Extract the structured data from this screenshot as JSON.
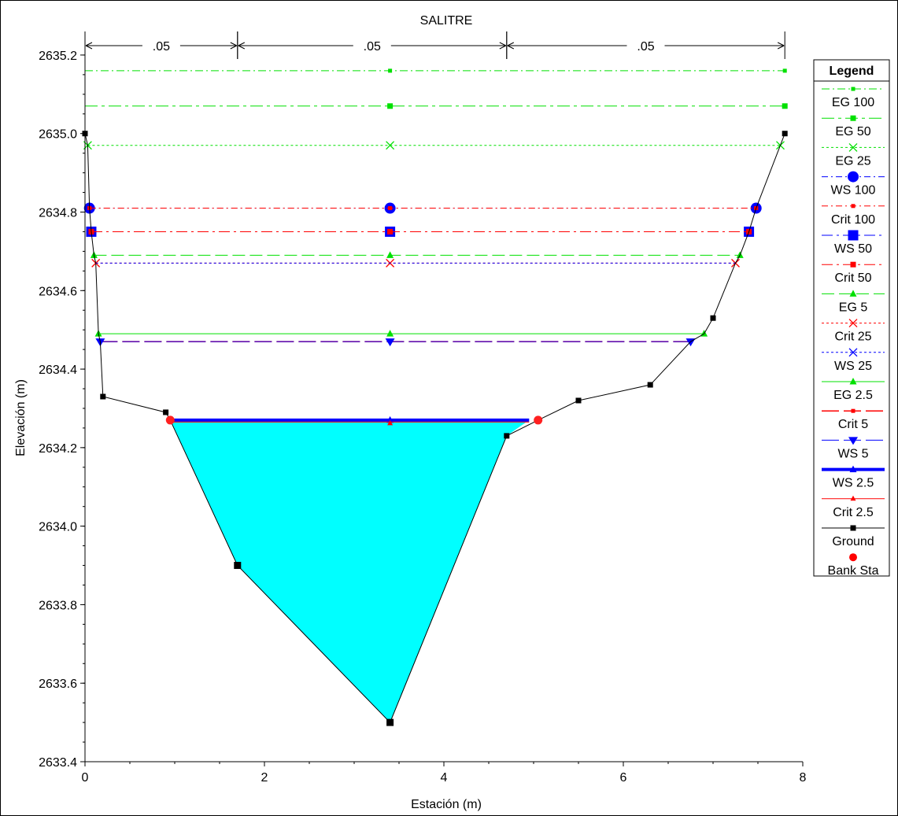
{
  "chart_data": {
    "type": "line",
    "title": "SALITRE",
    "xlabel": "Estación (m)",
    "ylabel": "Elevación (m)",
    "xlim": [
      0,
      8
    ],
    "ylim": [
      2633.4,
      2635.26
    ],
    "x_ticks": [
      0,
      2,
      4,
      6,
      8
    ],
    "y_ticks": [
      2633.4,
      2633.6,
      2633.8,
      2634.0,
      2634.2,
      2634.4,
      2634.6,
      2634.8,
      2635.0,
      2635.2
    ],
    "x_tick_labels": [
      "0",
      "2",
      "4",
      "6",
      "8"
    ],
    "y_tick_labels": [
      "2633.4",
      "2633.6",
      "2633.8",
      "2634.0",
      "2634.2",
      "2634.4",
      "2634.6",
      "2634.8",
      "2635.0",
      "2635.2"
    ],
    "mannings": [
      {
        "from": 0,
        "to": 1.7,
        "label": ".05"
      },
      {
        "from": 1.7,
        "to": 4.7,
        "label": ".05"
      },
      {
        "from": 4.7,
        "to": 7.8,
        "label": ".05"
      }
    ],
    "ground": {
      "name": "Ground",
      "color": "#000000",
      "points": [
        [
          0,
          2635.0
        ],
        [
          0.03,
          2634.97
        ],
        [
          0.05,
          2634.81
        ],
        [
          0.07,
          2634.75
        ],
        [
          0.1,
          2634.69
        ],
        [
          0.12,
          2634.67
        ],
        [
          0.15,
          2634.49
        ],
        [
          0.17,
          2634.47
        ],
        [
          0.2,
          2634.33
        ],
        [
          0.9,
          2634.29
        ],
        [
          0.95,
          2634.27
        ],
        [
          1.7,
          2633.9
        ],
        [
          3.4,
          2633.5
        ],
        [
          4.7,
          2634.23
        ],
        [
          5.05,
          2634.27
        ],
        [
          5.5,
          2634.32
        ],
        [
          6.3,
          2634.36
        ],
        [
          6.75,
          2634.47
        ],
        [
          6.9,
          2634.49
        ],
        [
          7.0,
          2634.53
        ],
        [
          7.25,
          2634.67
        ],
        [
          7.3,
          2634.69
        ],
        [
          7.4,
          2634.75
        ],
        [
          7.48,
          2634.81
        ],
        [
          7.75,
          2634.97
        ],
        [
          7.8,
          2635.0
        ]
      ],
      "ground_points": [
        [
          0,
          2635.0
        ],
        [
          0.2,
          2634.33
        ],
        [
          0.9,
          2634.29
        ],
        [
          1.7,
          2633.9
        ],
        [
          3.4,
          2633.5
        ],
        [
          4.7,
          2634.23
        ],
        [
          5.5,
          2634.32
        ],
        [
          6.3,
          2634.36
        ],
        [
          7.0,
          2634.53
        ],
        [
          7.8,
          2635.0
        ]
      ]
    },
    "bank_stations": [
      [
        0.95,
        2634.27
      ],
      [
        5.05,
        2634.27
      ]
    ],
    "water_fill": {
      "color": "#00ffff",
      "polygon": [
        [
          0.95,
          2634.27
        ],
        [
          1.7,
          2633.9
        ],
        [
          3.4,
          2633.5
        ],
        [
          4.7,
          2634.23
        ],
        [
          4.95,
          2634.27
        ]
      ]
    },
    "series": [
      {
        "name": "EG 100",
        "color": "#00e000",
        "dash": "10,4,2,4",
        "width": 1,
        "marker": "dot",
        "y": 2635.16,
        "x0": 0.0,
        "x1": 7.8,
        "markers_x": [
          3.4,
          7.8
        ]
      },
      {
        "name": "EG 50",
        "color": "#00e000",
        "dash": "16,5,4,5",
        "width": 1,
        "marker": "square",
        "y": 2635.07,
        "x0": 0.0,
        "x1": 7.8,
        "markers_x": [
          3.4,
          7.8
        ]
      },
      {
        "name": "EG 25",
        "color": "#00e000",
        "dash": "3,3",
        "width": 1,
        "marker": "x",
        "y": 2634.97,
        "x0": 0.03,
        "x1": 7.75,
        "markers_x": [
          0.03,
          3.4,
          7.75
        ]
      },
      {
        "name": "WS 100",
        "color": "#0000ff",
        "dash": "8,4,2,4",
        "width": 1,
        "marker": "circle-big",
        "y": 2634.81,
        "x0": 0.05,
        "x1": 7.48,
        "markers_x": [
          0.05,
          3.4,
          7.48
        ]
      },
      {
        "name": "Crit 100",
        "color": "#ff0000",
        "dash": "8,4,2,4",
        "width": 1,
        "marker": "dot",
        "y": 2634.81,
        "x0": 0.05,
        "x1": 7.48,
        "markers_x": [
          0.05,
          3.4,
          7.48
        ]
      },
      {
        "name": "WS 50",
        "color": "#0000ff",
        "dash": "14,5,3,5",
        "width": 1,
        "marker": "square-big",
        "y": 2634.75,
        "x0": 0.07,
        "x1": 7.4,
        "markers_x": [
          0.07,
          3.4,
          7.4
        ]
      },
      {
        "name": "Crit 50",
        "color": "#ff0000",
        "dash": "14,5,3,5",
        "width": 1,
        "marker": "square",
        "y": 2634.75,
        "x0": 0.07,
        "x1": 7.4,
        "markers_x": [
          0.07,
          3.4,
          7.4
        ]
      },
      {
        "name": "EG 5",
        "color": "#00e000",
        "dash": "16,6",
        "width": 1,
        "marker": "tri",
        "y": 2634.69,
        "x0": 0.1,
        "x1": 7.3,
        "markers_x": [
          0.1,
          3.4,
          7.3
        ]
      },
      {
        "name": "Crit 25",
        "color": "#ff0000",
        "dash": "3,3",
        "width": 1,
        "marker": "x",
        "y": 2634.67,
        "x0": 0.12,
        "x1": 7.25,
        "markers_x": [
          0.12,
          3.4,
          7.25
        ]
      },
      {
        "name": "WS 25",
        "color": "#0000ff",
        "dash": "3,3",
        "width": 1,
        "marker": "x",
        "y": 2634.67,
        "x0": 0.12,
        "x1": 7.25,
        "markers_x": []
      },
      {
        "name": "EG 2.5",
        "color": "#00e000",
        "dash": "",
        "width": 1,
        "marker": "tri",
        "y": 2634.49,
        "x0": 0.15,
        "x1": 6.9,
        "markers_x": [
          0.15,
          3.4,
          6.9
        ]
      },
      {
        "name": "Crit 5",
        "color": "#ff0000",
        "dash": "22,6",
        "width": 1.5,
        "marker": "dot",
        "y": 2634.47,
        "x0": 0.17,
        "x1": 6.75,
        "markers_x": []
      },
      {
        "name": "WS 5",
        "color": "#0000ff",
        "dash": "22,6",
        "width": 1,
        "marker": "tri-down",
        "y": 2634.47,
        "x0": 0.17,
        "x1": 6.75,
        "markers_x": [
          0.17,
          3.4,
          6.75
        ]
      },
      {
        "name": "WS 2.5",
        "color": "#0000ff",
        "dash": "",
        "width": 4,
        "marker": "tri",
        "y": 2634.27,
        "x0": 0.95,
        "x1": 4.95,
        "markers_x": [
          3.4
        ]
      },
      {
        "name": "Crit 2.5",
        "color": "#ff0000",
        "dash": "",
        "width": 1,
        "marker": "tri-small",
        "y": 2634.265,
        "x0": 0.95,
        "x1": 4.95,
        "markers_x": []
      }
    ],
    "legend": {
      "title": "Legend",
      "placement": "right",
      "entries": [
        {
          "name": "EG 100",
          "color": "#00e000",
          "dash": "10,4,2,4",
          "width": 1,
          "marker": "dot"
        },
        {
          "name": "EG 50",
          "color": "#00e000",
          "dash": "16,5,4,5",
          "width": 1,
          "marker": "square"
        },
        {
          "name": "EG 25",
          "color": "#00e000",
          "dash": "3,3",
          "width": 1,
          "marker": "x"
        },
        {
          "name": "WS 100",
          "color": "#0000ff",
          "dash": "8,4,2,4",
          "width": 1,
          "marker": "circle-big"
        },
        {
          "name": "Crit 100",
          "color": "#ff0000",
          "dash": "8,4,2,4",
          "width": 1,
          "marker": "dot"
        },
        {
          "name": "WS 50",
          "color": "#0000ff",
          "dash": "14,5,3,5",
          "width": 1,
          "marker": "square-big"
        },
        {
          "name": "Crit 50",
          "color": "#ff0000",
          "dash": "14,5,3,5",
          "width": 1,
          "marker": "square"
        },
        {
          "name": "EG 5",
          "color": "#00e000",
          "dash": "16,6",
          "width": 1,
          "marker": "tri"
        },
        {
          "name": "Crit 25",
          "color": "#ff0000",
          "dash": "3,3",
          "width": 1,
          "marker": "x"
        },
        {
          "name": "WS 25",
          "color": "#0000ff",
          "dash": "3,3",
          "width": 1,
          "marker": "x"
        },
        {
          "name": "EG 2.5",
          "color": "#00e000",
          "dash": "",
          "width": 1,
          "marker": "tri"
        },
        {
          "name": "Crit 5",
          "color": "#ff0000",
          "dash": "22,6",
          "width": 1.5,
          "marker": "dot"
        },
        {
          "name": "WS 5",
          "color": "#0000ff",
          "dash": "22,6",
          "width": 1,
          "marker": "tri-down"
        },
        {
          "name": "WS 2.5",
          "color": "#0000ff",
          "dash": "",
          "width": 4,
          "marker": "tri"
        },
        {
          "name": "Crit 2.5",
          "color": "#ff0000",
          "dash": "",
          "width": 1,
          "marker": "tri-small"
        },
        {
          "name": "Ground",
          "color": "#000000",
          "dash": "",
          "width": 1,
          "marker": "square-black"
        },
        {
          "name": "Bank Sta",
          "color": "#ff0000",
          "dash": "none",
          "width": 0,
          "marker": "circle-red"
        }
      ]
    }
  }
}
